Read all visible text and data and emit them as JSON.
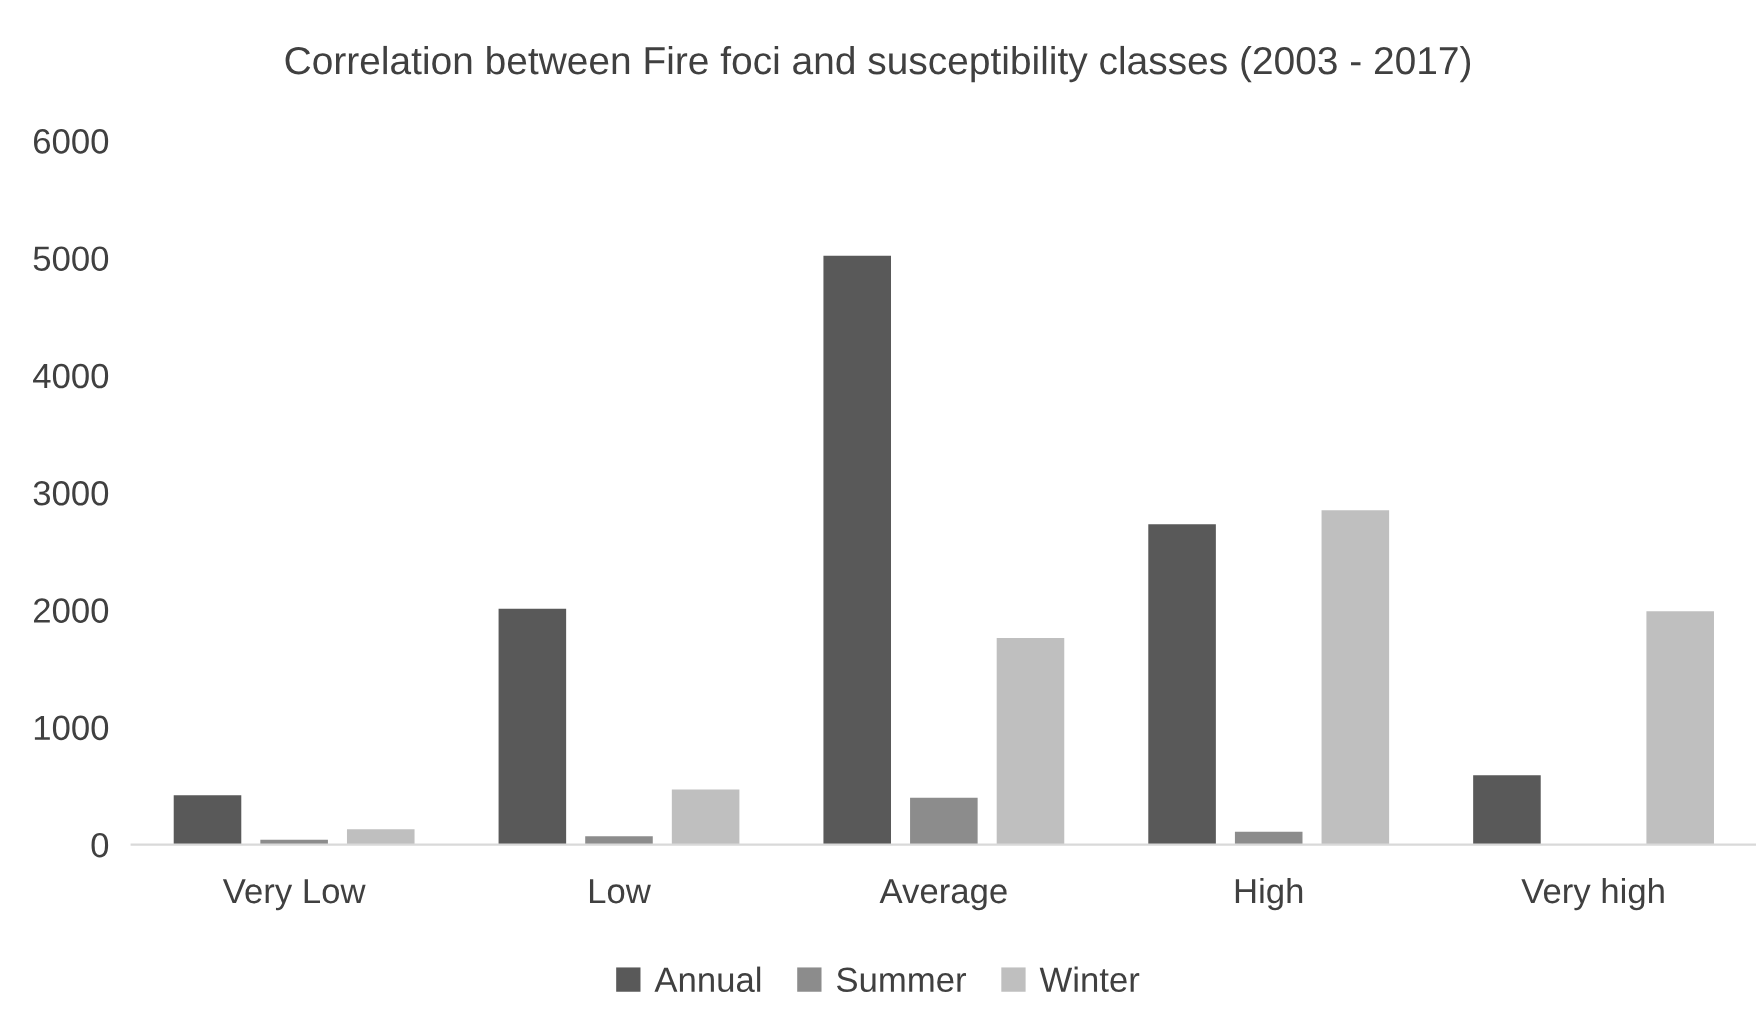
{
  "chart_data": {
    "type": "bar",
    "title": "Correlation between Fire foci and susceptibility classes (2003 - 2017)",
    "categories": [
      "Very Low",
      "Low",
      "Average",
      "High",
      "Very high"
    ],
    "series": [
      {
        "name": "Annual",
        "color": "#595959",
        "values": [
          420,
          2010,
          5020,
          2730,
          590
        ]
      },
      {
        "name": "Summer",
        "color": "#8c8c8c",
        "values": [
          40,
          70,
          400,
          110,
          null
        ]
      },
      {
        "name": "Winter",
        "color": "#bfbfbf",
        "values": [
          130,
          470,
          1760,
          2850,
          1990
        ]
      }
    ],
    "ylim": [
      0,
      6000
    ],
    "yticks": [
      0,
      1000,
      2000,
      3000,
      4000,
      5000,
      6000
    ],
    "grid": false,
    "legend": "bottom"
  }
}
